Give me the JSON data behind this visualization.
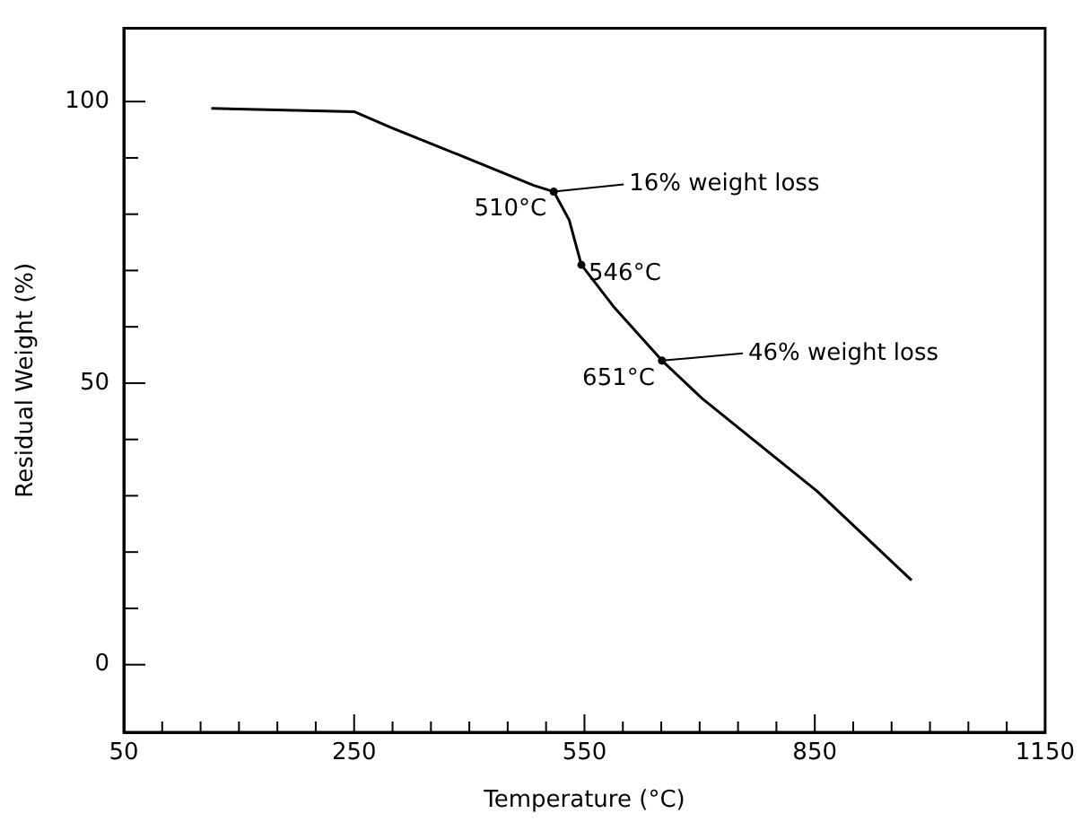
{
  "chart_data": {
    "type": "line",
    "xlabel": "Temperature (°C)",
    "ylabel": "Residual Weight (%)",
    "x": [
      64,
      250,
      298,
      369,
      484,
      510,
      530,
      546,
      589,
      651,
      703,
      853,
      976
    ],
    "series": [
      {
        "color": "#000000",
        "values": [
          98.8,
          98.2,
          95.4,
          91.5,
          85.1,
          84,
          79,
          71,
          63.4,
          54,
          47.3,
          30.8,
          15
        ]
      }
    ],
    "xlim": [
      -50,
      1150
    ],
    "xticks": [
      {
        "value": -50,
        "label": "50"
      },
      {
        "value": 0,
        "label": null
      },
      {
        "value": 50,
        "label": null
      },
      {
        "value": 100,
        "label": null
      },
      {
        "value": 150,
        "label": null
      },
      {
        "value": 200,
        "label": null
      },
      250,
      {
        "value": 300,
        "label": null
      },
      {
        "value": 350,
        "label": null
      },
      {
        "value": 400,
        "label": null
      },
      {
        "value": 450,
        "label": null
      },
      {
        "value": 500,
        "label": null
      },
      550,
      {
        "value": 600,
        "label": null
      },
      {
        "value": 650,
        "label": null
      },
      {
        "value": 700,
        "label": null
      },
      {
        "value": 750,
        "label": null
      },
      {
        "value": 800,
        "label": null
      },
      850,
      {
        "value": 900,
        "label": null
      },
      {
        "value": 950,
        "label": null
      },
      {
        "value": 1000,
        "label": null
      },
      {
        "value": 1050,
        "label": null
      },
      {
        "value": 1100,
        "label": null
      },
      1150
    ],
    "ylim": [
      -12,
      113
    ],
    "yticks": [
      0,
      {
        "value": 10,
        "label": null
      },
      {
        "value": 20,
        "label": null
      },
      {
        "value": 30,
        "label": null
      },
      {
        "value": 40,
        "label": null
      },
      50,
      {
        "value": 60,
        "label": null
      },
      {
        "value": 70,
        "label": null
      },
      {
        "value": 80,
        "label": null
      },
      {
        "value": 90,
        "label": null
      },
      100
    ],
    "grid": false,
    "legend": false,
    "marker": "none",
    "line_style": "solid",
    "annotations": [
      {
        "text": "510°C",
        "x": 510,
        "y": 84
      },
      "16% weight loss",
      {
        "text": "546°C",
        "x": 546,
        "y": 71
      },
      {
        "text": "651°C",
        "x": 651,
        "y": 54
      },
      "46% weight loss"
    ]
  }
}
